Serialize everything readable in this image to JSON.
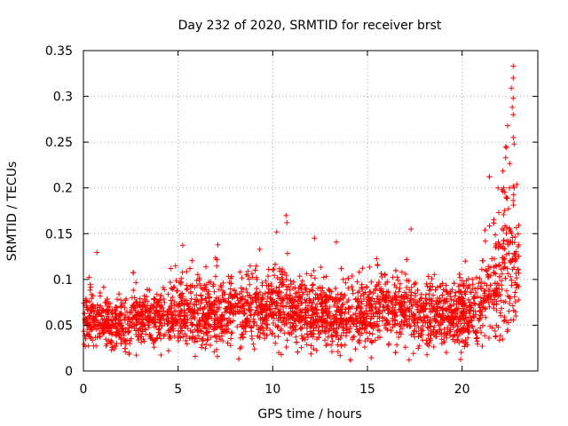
{
  "chart_data": {
    "type": "scatter",
    "title": "Day 232 of 2020, SRMTID for receiver brst",
    "xlabel": "GPS time / hours",
    "ylabel": "SRMTID / TECUs",
    "xlim": [
      0,
      24
    ],
    "ylim": [
      0,
      0.35
    ],
    "xticks": [
      0,
      5,
      10,
      15,
      20
    ],
    "xtick_labels": [
      "0",
      "5",
      "10",
      "15",
      "20"
    ],
    "yticks": [
      0,
      0.05,
      0.1,
      0.15,
      0.2,
      0.25,
      0.3,
      0.35
    ],
    "ytick_labels": [
      "0",
      "0.05",
      "0.1",
      "0.15",
      "0.2",
      "0.25",
      "0.3",
      "0.35"
    ],
    "grid": true,
    "marker": "+",
    "series": [
      {
        "name": "SRMTID",
        "color": "#ff0000",
        "envelope": {
          "x": [
            0,
            1,
            2,
            3,
            4,
            5,
            6,
            7,
            8,
            9,
            10,
            10.7,
            11,
            12,
            13,
            14,
            15,
            16,
            17,
            17.2,
            18,
            19,
            20,
            21,
            21.5,
            22,
            22.3,
            22.6,
            23
          ],
          "median": [
            0.06,
            0.055,
            0.05,
            0.06,
            0.06,
            0.065,
            0.065,
            0.06,
            0.065,
            0.065,
            0.07,
            0.075,
            0.065,
            0.06,
            0.065,
            0.06,
            0.065,
            0.07,
            0.065,
            0.06,
            0.065,
            0.06,
            0.06,
            0.075,
            0.09,
            0.1,
            0.12,
            0.12,
            0.11
          ],
          "spread": [
            0.025,
            0.022,
            0.022,
            0.025,
            0.025,
            0.028,
            0.03,
            0.03,
            0.03,
            0.03,
            0.03,
            0.04,
            0.03,
            0.03,
            0.03,
            0.028,
            0.03,
            0.03,
            0.03,
            0.035,
            0.03,
            0.03,
            0.03,
            0.04,
            0.05,
            0.06,
            0.07,
            0.08,
            0.05
          ]
        },
        "points_per_hour": 140,
        "extremes": [
          {
            "x": 22.7,
            "y": 0.333
          },
          {
            "x": 22.7,
            "y": 0.32
          },
          {
            "x": 22.6,
            "y": 0.309
          },
          {
            "x": 22.7,
            "y": 0.298
          },
          {
            "x": 22.65,
            "y": 0.288
          },
          {
            "x": 22.7,
            "y": 0.28
          },
          {
            "x": 22.4,
            "y": 0.268
          },
          {
            "x": 22.7,
            "y": 0.255
          },
          {
            "x": 22.75,
            "y": 0.248
          },
          {
            "x": 22.3,
            "y": 0.245
          },
          {
            "x": 22.35,
            "y": 0.244
          },
          {
            "x": 22.3,
            "y": 0.233
          },
          {
            "x": 22.7,
            "y": 0.202
          },
          {
            "x": 22.75,
            "y": 0.2
          },
          {
            "x": 21.9,
            "y": 0.2
          },
          {
            "x": 22.1,
            "y": 0.198
          },
          {
            "x": 22.2,
            "y": 0.2
          },
          {
            "x": 10.7,
            "y": 0.17
          },
          {
            "x": 10.75,
            "y": 0.162
          },
          {
            "x": 17.3,
            "y": 0.155
          },
          {
            "x": 12.2,
            "y": 0.145
          },
          {
            "x": 7.1,
            "y": 0.138
          },
          {
            "x": 17.2,
            "y": 0.012
          },
          {
            "x": 5.9,
            "y": 0.016
          },
          {
            "x": 0.1,
            "y": 0.027
          }
        ]
      }
    ]
  }
}
